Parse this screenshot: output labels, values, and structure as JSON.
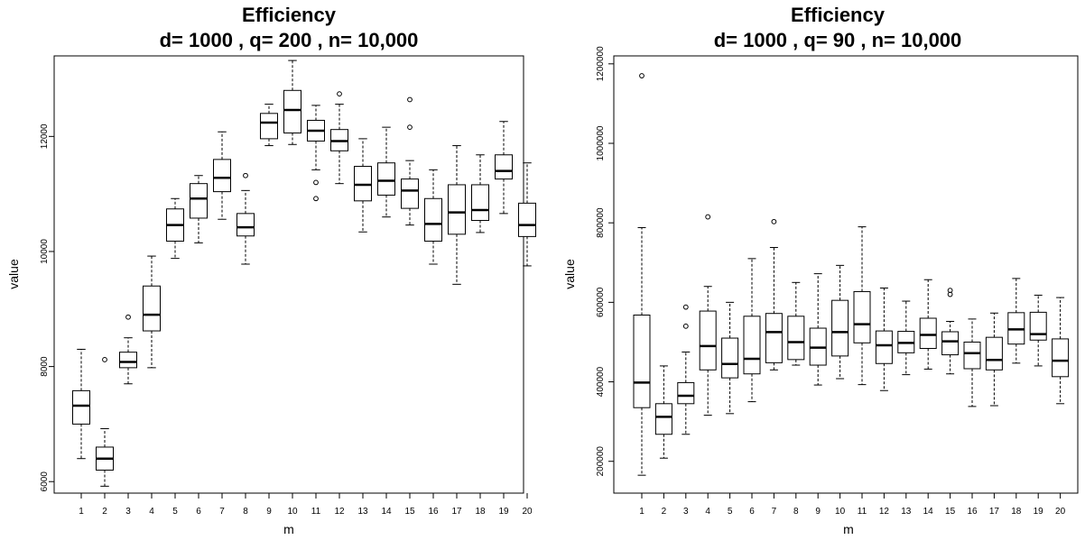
{
  "chart_data": [
    {
      "type": "box",
      "title": "Efficiency",
      "subtitle": "d= 1000 , q= 200 , n= 10,000",
      "xlabel": "m",
      "ylabel": "value",
      "ylim": [
        5800,
        13400
      ],
      "yticks": [
        6000,
        8000,
        10000,
        12000
      ],
      "yticklabels": [
        "6000",
        "8000",
        "10000",
        "12000"
      ],
      "categories": [
        "1",
        "2",
        "3",
        "4",
        "5",
        "6",
        "7",
        "8",
        "9",
        "10",
        "11",
        "12",
        "13",
        "14",
        "15",
        "16",
        "17",
        "18",
        "19",
        "20"
      ],
      "boxes": [
        {
          "wlo": 6400,
          "q1": 7000,
          "median": 7320,
          "q3": 7580,
          "whi": 8300,
          "outliers": []
        },
        {
          "wlo": 5920,
          "q1": 6200,
          "median": 6400,
          "q3": 6600,
          "whi": 6920,
          "outliers": [
            8120
          ]
        },
        {
          "wlo": 7700,
          "q1": 7980,
          "median": 8080,
          "q3": 8250,
          "whi": 8500,
          "outliers": [
            8860
          ]
        },
        {
          "wlo": 7980,
          "q1": 8620,
          "median": 8900,
          "q3": 9400,
          "whi": 9920,
          "outliers": []
        },
        {
          "wlo": 9880,
          "q1": 10180,
          "median": 10460,
          "q3": 10740,
          "whi": 10920,
          "outliers": []
        },
        {
          "wlo": 10150,
          "q1": 10580,
          "median": 10920,
          "q3": 11180,
          "whi": 11320,
          "outliers": []
        },
        {
          "wlo": 10560,
          "q1": 11040,
          "median": 11280,
          "q3": 11600,
          "whi": 12080,
          "outliers": []
        },
        {
          "wlo": 9780,
          "q1": 10270,
          "median": 10420,
          "q3": 10660,
          "whi": 11060,
          "outliers": [
            11320
          ]
        },
        {
          "wlo": 11840,
          "q1": 11960,
          "median": 12240,
          "q3": 12400,
          "whi": 12560,
          "outliers": []
        },
        {
          "wlo": 11860,
          "q1": 12060,
          "median": 12460,
          "q3": 12800,
          "whi": 13320,
          "outliers": []
        },
        {
          "wlo": 11420,
          "q1": 11920,
          "median": 12100,
          "q3": 12280,
          "whi": 12540,
          "outliers": [
            11200,
            10920
          ]
        },
        {
          "wlo": 11180,
          "q1": 11750,
          "median": 11920,
          "q3": 12120,
          "whi": 12560,
          "outliers": [
            12740
          ]
        },
        {
          "wlo": 10340,
          "q1": 10880,
          "median": 11160,
          "q3": 11480,
          "whi": 11960,
          "outliers": []
        },
        {
          "wlo": 10600,
          "q1": 10980,
          "median": 11230,
          "q3": 11540,
          "whi": 12160,
          "outliers": []
        },
        {
          "wlo": 10460,
          "q1": 10750,
          "median": 11060,
          "q3": 11260,
          "whi": 11580,
          "outliers": [
            12640,
            12160
          ]
        },
        {
          "wlo": 9780,
          "q1": 10180,
          "median": 10480,
          "q3": 10920,
          "whi": 11420,
          "outliers": []
        },
        {
          "wlo": 9430,
          "q1": 10300,
          "median": 10680,
          "q3": 11160,
          "whi": 11840,
          "outliers": []
        },
        {
          "wlo": 10330,
          "q1": 10540,
          "median": 10720,
          "q3": 11160,
          "whi": 11680,
          "outliers": []
        },
        {
          "wlo": 10660,
          "q1": 11260,
          "median": 11400,
          "q3": 11680,
          "whi": 12260,
          "outliers": []
        },
        {
          "wlo": 9750,
          "q1": 10260,
          "median": 10460,
          "q3": 10840,
          "whi": 11540,
          "outliers": []
        }
      ]
    },
    {
      "type": "box",
      "title": "Efficiency",
      "subtitle": "d= 1000 , q= 90 , n= 10,000",
      "xlabel": "m",
      "ylabel": "value",
      "ylim": [
        120000,
        1220000
      ],
      "yticks": [
        200000,
        400000,
        600000,
        800000,
        1000000,
        1200000
      ],
      "yticklabels": [
        "200000",
        "400000",
        "600000",
        "800000",
        "1000000",
        "1200000"
      ],
      "categories": [
        "1",
        "2",
        "3",
        "4",
        "5",
        "6",
        "7",
        "8",
        "9",
        "10",
        "11",
        "12",
        "13",
        "14",
        "15",
        "16",
        "17",
        "18",
        "19",
        "20"
      ],
      "boxes": [
        {
          "wlo": 165000,
          "q1": 335000,
          "median": 398000,
          "q3": 568000,
          "whi": 788000,
          "outliers": [
            1170000
          ]
        },
        {
          "wlo": 208000,
          "q1": 268000,
          "median": 312000,
          "q3": 345000,
          "whi": 440000,
          "outliers": []
        },
        {
          "wlo": 268000,
          "q1": 345000,
          "median": 365000,
          "q3": 398000,
          "whi": 475000,
          "outliers": [
            540000,
            588000
          ]
        },
        {
          "wlo": 316000,
          "q1": 430000,
          "median": 490000,
          "q3": 578000,
          "whi": 640000,
          "outliers": [
            815000
          ]
        },
        {
          "wlo": 320000,
          "q1": 410000,
          "median": 445000,
          "q3": 510000,
          "whi": 600000,
          "outliers": []
        },
        {
          "wlo": 350000,
          "q1": 420000,
          "median": 458000,
          "q3": 565000,
          "whi": 710000,
          "outliers": []
        },
        {
          "wlo": 430000,
          "q1": 448000,
          "median": 525000,
          "q3": 572000,
          "whi": 738000,
          "outliers": [
            803000
          ]
        },
        {
          "wlo": 442000,
          "q1": 456000,
          "median": 500000,
          "q3": 565000,
          "whi": 650000,
          "outliers": []
        },
        {
          "wlo": 392000,
          "q1": 442000,
          "median": 486000,
          "q3": 535000,
          "whi": 672000,
          "outliers": []
        },
        {
          "wlo": 408000,
          "q1": 465000,
          "median": 525000,
          "q3": 605000,
          "whi": 693000,
          "outliers": []
        },
        {
          "wlo": 393000,
          "q1": 498000,
          "median": 545000,
          "q3": 627000,
          "whi": 790000,
          "outliers": []
        },
        {
          "wlo": 378000,
          "q1": 446000,
          "median": 492000,
          "q3": 528000,
          "whi": 636000,
          "outliers": []
        },
        {
          "wlo": 418000,
          "q1": 473000,
          "median": 498000,
          "q3": 527000,
          "whi": 603000,
          "outliers": []
        },
        {
          "wlo": 432000,
          "q1": 484000,
          "median": 518000,
          "q3": 560000,
          "whi": 657000,
          "outliers": []
        },
        {
          "wlo": 420000,
          "q1": 468000,
          "median": 502000,
          "q3": 526000,
          "whi": 552000,
          "outliers": [
            620000,
            630000
          ]
        },
        {
          "wlo": 338000,
          "q1": 433000,
          "median": 472000,
          "q3": 500000,
          "whi": 558000,
          "outliers": []
        },
        {
          "wlo": 340000,
          "q1": 430000,
          "median": 455000,
          "q3": 512000,
          "whi": 573000,
          "outliers": []
        },
        {
          "wlo": 447000,
          "q1": 495000,
          "median": 532000,
          "q3": 574000,
          "whi": 660000,
          "outliers": []
        },
        {
          "wlo": 440000,
          "q1": 505000,
          "median": 520000,
          "q3": 575000,
          "whi": 618000,
          "outliers": []
        },
        {
          "wlo": 345000,
          "q1": 413000,
          "median": 453000,
          "q3": 508000,
          "whi": 612000,
          "outliers": []
        }
      ]
    }
  ]
}
